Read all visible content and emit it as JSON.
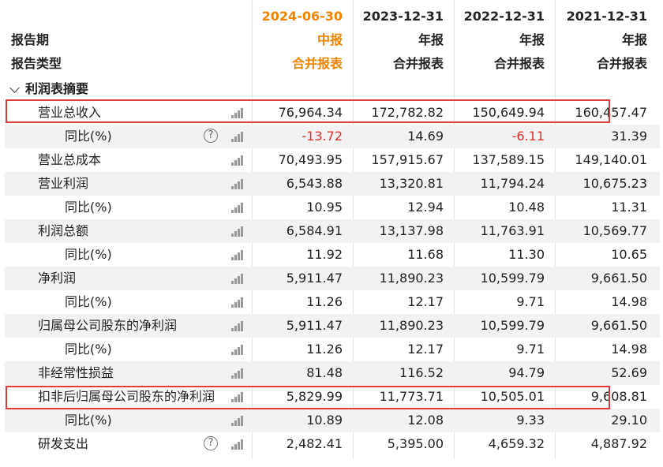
{
  "header": {
    "periods": [
      "2024-06-30",
      "2023-12-31",
      "2022-12-31",
      "2021-12-31"
    ],
    "report_period_label": "报告期",
    "report_period_values": [
      "中报",
      "年报",
      "年报",
      "年报"
    ],
    "report_type_label": "报告类型",
    "report_type_values": [
      "合并报表",
      "合并报表",
      "合并报表",
      "合并报表"
    ]
  },
  "section": {
    "title": "利润表摘要"
  },
  "rows": [
    {
      "label": "营业总收入",
      "values": [
        "76,964.34",
        "172,782.82",
        "150,649.94",
        "160,457.47"
      ]
    },
    {
      "label": "同比(%)",
      "values": [
        "-13.72",
        "14.69",
        "-6.11",
        "31.39"
      ]
    },
    {
      "label": "营业总成本",
      "values": [
        "70,493.95",
        "157,915.67",
        "137,589.15",
        "149,140.01"
      ]
    },
    {
      "label": "营业利润",
      "values": [
        "6,543.88",
        "13,320.81",
        "11,794.24",
        "10,675.23"
      ]
    },
    {
      "label": "同比(%)",
      "values": [
        "10.95",
        "12.94",
        "10.48",
        "11.31"
      ]
    },
    {
      "label": "利润总额",
      "values": [
        "6,584.91",
        "13,137.98",
        "11,763.91",
        "10,569.77"
      ]
    },
    {
      "label": "同比(%)",
      "values": [
        "11.92",
        "11.68",
        "11.30",
        "10.65"
      ]
    },
    {
      "label": "净利润",
      "values": [
        "5,911.47",
        "11,890.23",
        "10,599.79",
        "9,661.50"
      ]
    },
    {
      "label": "同比(%)",
      "values": [
        "11.26",
        "12.17",
        "9.71",
        "14.98"
      ]
    },
    {
      "label": "归属母公司股东的净利润",
      "values": [
        "5,911.47",
        "11,890.23",
        "10,599.79",
        "9,661.50"
      ]
    },
    {
      "label": "同比(%)",
      "values": [
        "11.26",
        "12.17",
        "9.71",
        "14.98"
      ]
    },
    {
      "label": "非经常性损益",
      "values": [
        "81.48",
        "116.52",
        "94.79",
        "52.69"
      ]
    },
    {
      "label": "扣非后归属母公司股东的净利润",
      "values": [
        "5,829.99",
        "11,773.71",
        "10,505.01",
        "9,608.81"
      ]
    },
    {
      "label": "同比(%)",
      "values": [
        "10.89",
        "12.08",
        "9.33",
        "29.10"
      ]
    },
    {
      "label": "研发支出",
      "values": [
        "2,482.41",
        "5,395.00",
        "4,659.32",
        "4,887.92"
      ]
    }
  ],
  "icons": {
    "chart": "bar-chart-icon",
    "help": "question-circle-icon",
    "help_glyph": "?"
  },
  "colors": {
    "highlight_column": "#f08300",
    "negative": "#e0302a",
    "highlight_box": "#e03a3a"
  }
}
